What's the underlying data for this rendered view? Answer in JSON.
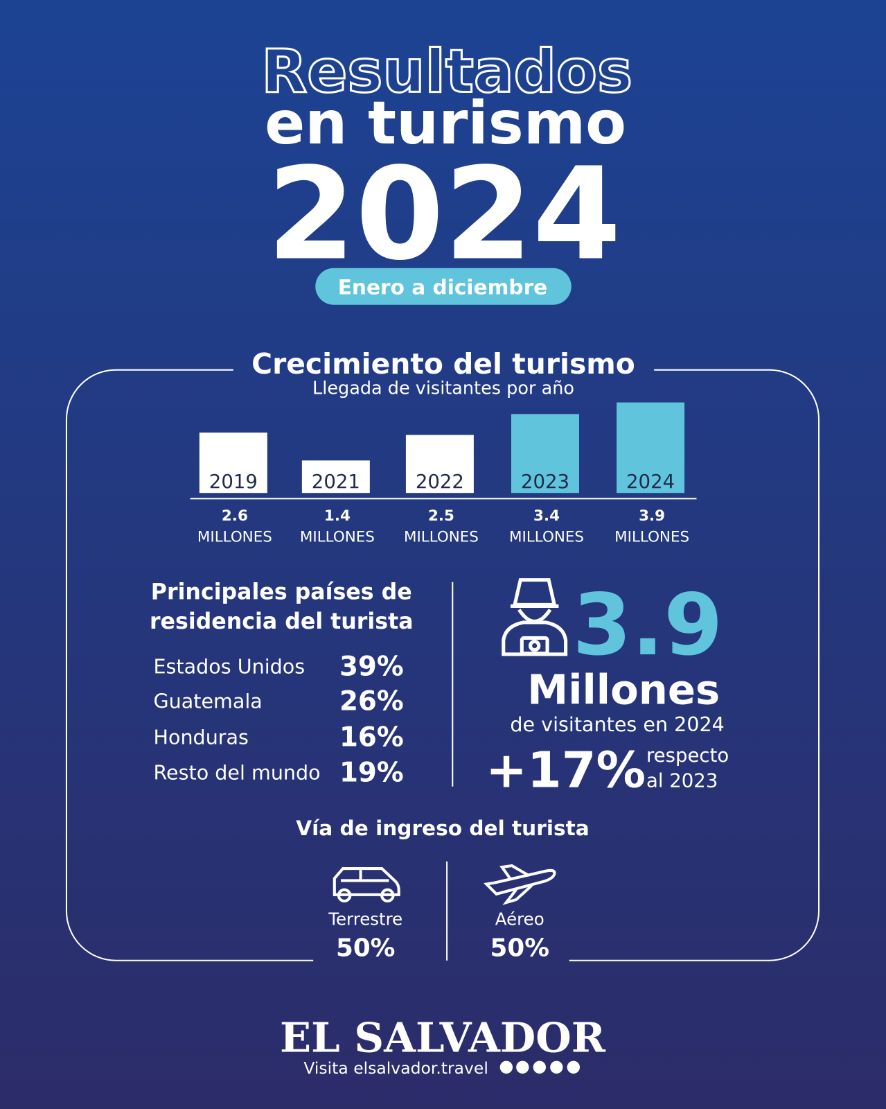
{
  "header": {
    "title_line1": "Resultados",
    "title_line2": "en turismo",
    "year": "2024",
    "period": "Enero a diciembre"
  },
  "chart_data": {
    "type": "bar",
    "title": "Crecimiento del turismo",
    "subtitle": "Llegada de visitantes por año",
    "categories": [
      "2019",
      "2021",
      "2022",
      "2023",
      "2024"
    ],
    "values": [
      2.6,
      1.4,
      2.5,
      3.4,
      3.9
    ],
    "unit": "MILLONES",
    "colors": [
      "#ffffff",
      "#ffffff",
      "#ffffff",
      "#5fc4dc",
      "#5fc4dc"
    ]
  },
  "countries": {
    "title_line1": "Principales países de",
    "title_line2": "residencia del turista",
    "rows": [
      {
        "name": "Estados Unidos",
        "share": "39%"
      },
      {
        "name": "Guatemala",
        "share": "26%"
      },
      {
        "name": "Honduras",
        "share": "16%"
      },
      {
        "name": "Resto del mundo",
        "share": "19%"
      }
    ]
  },
  "highlight": {
    "number": "3.9",
    "unit": "Millones",
    "caption": "de visitantes en 2024",
    "growth": "+17%",
    "growth_note_line1": "respecto",
    "growth_note_line2": "al 2023"
  },
  "entry": {
    "title": "Vía de ingreso del turista",
    "modes": [
      {
        "name": "Terrestre",
        "share": "50%"
      },
      {
        "name": "Aéreo",
        "share": "50%"
      }
    ]
  },
  "footer": {
    "brand": "EL SALVADOR",
    "site": "Visita elsalvador.travel"
  }
}
